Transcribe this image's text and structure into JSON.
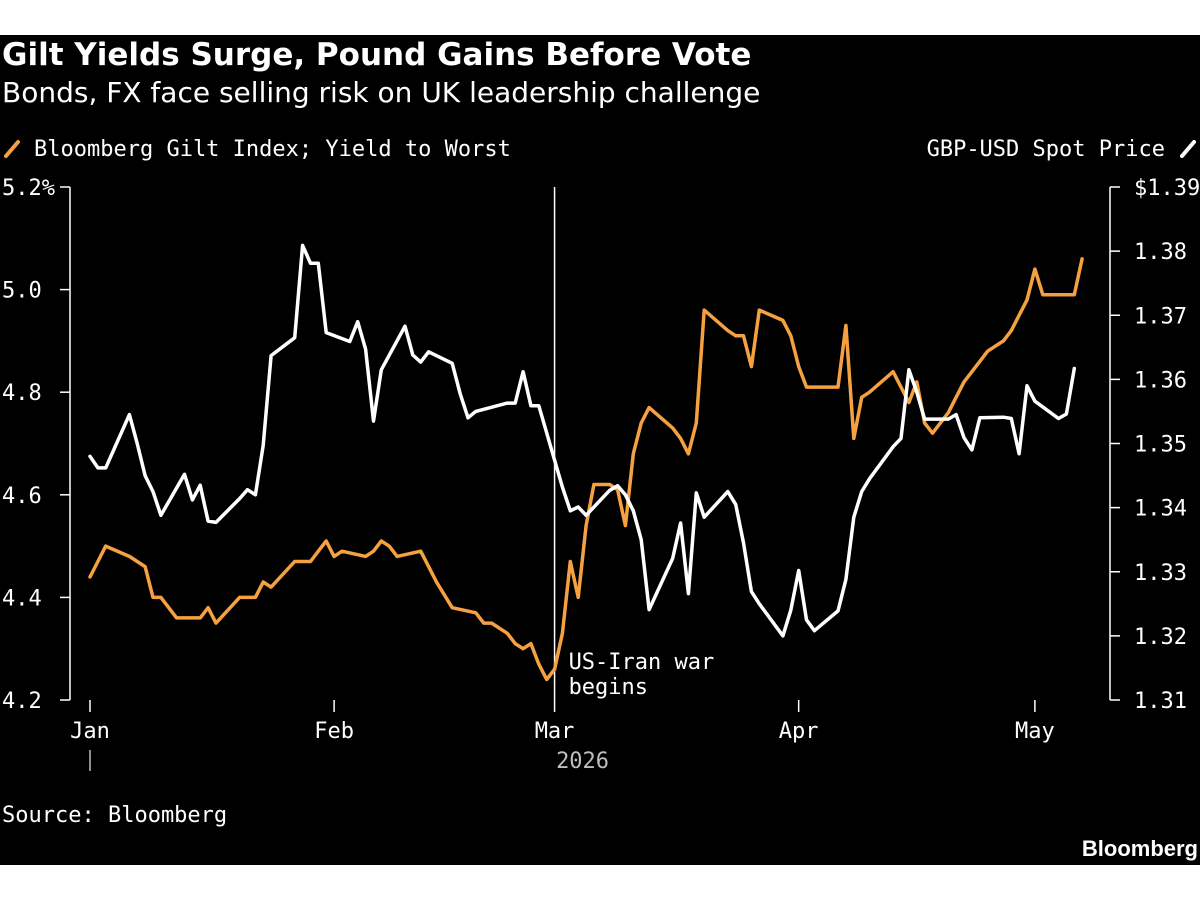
{
  "title": "Gilt Yields Surge, Pound Gains Before Vote",
  "subtitle": "Bonds, FX face selling risk on UK leadership challenge",
  "source": "Source: Bloomberg",
  "brand": "Bloomberg",
  "colors": {
    "background": "#000000",
    "gilt": "#f5a141",
    "gbp": "#ffffff",
    "axis": "#ffffff",
    "year": "#bdbdbd"
  },
  "chart_data": {
    "type": "line",
    "legend": {
      "left": "Bloomberg Gilt Index; Yield to Worst",
      "right": "GBP-USD Spot Price",
      "placement": "top"
    },
    "x_ticks": [
      "Jan",
      "Feb",
      "Mar",
      "Apr",
      "May"
    ],
    "x_tick_positions": [
      "2026-01-01",
      "2026-02-01",
      "2026-03-01",
      "2026-04-01",
      "2026-05-01"
    ],
    "year_label": "2026",
    "x_range": [
      "2026-01-01",
      "2026-05-08"
    ],
    "y_left": {
      "ticks": [
        "5.2%",
        "5.0",
        "4.8",
        "4.6",
        "4.4",
        "4.2"
      ],
      "tick_values": [
        5.2,
        5.0,
        4.8,
        4.6,
        4.4,
        4.2
      ],
      "range": [
        4.2,
        5.2
      ]
    },
    "y_right": {
      "ticks": [
        "$1.39",
        "1.38",
        "1.37",
        "1.36",
        "1.35",
        "1.34",
        "1.33",
        "1.32",
        "1.31"
      ],
      "tick_values": [
        1.39,
        1.38,
        1.37,
        1.36,
        1.35,
        1.34,
        1.33,
        1.32,
        1.31
      ],
      "range": [
        1.31,
        1.39
      ]
    },
    "grid": false,
    "annotation": {
      "date": "2026-03-01",
      "lines": [
        "US-Iran war",
        "begins"
      ]
    },
    "series": [
      {
        "name": "Bloomberg Gilt Index; Yield to Worst",
        "axis": "left",
        "points": [
          [
            "2026-01-01",
            4.44
          ],
          [
            "2026-01-02",
            4.47
          ],
          [
            "2026-01-03",
            4.5
          ],
          [
            "2026-01-06",
            4.48
          ],
          [
            "2026-01-07",
            4.47
          ],
          [
            "2026-01-08",
            4.46
          ],
          [
            "2026-01-09",
            4.4
          ],
          [
            "2026-01-10",
            4.4
          ],
          [
            "2026-01-12",
            4.36
          ],
          [
            "2026-01-15",
            4.36
          ],
          [
            "2026-01-16",
            4.38
          ],
          [
            "2026-01-17",
            4.35
          ],
          [
            "2026-01-20",
            4.4
          ],
          [
            "2026-01-22",
            4.4
          ],
          [
            "2026-01-23",
            4.43
          ],
          [
            "2026-01-24",
            4.42
          ],
          [
            "2026-01-27",
            4.47
          ],
          [
            "2026-01-29",
            4.47
          ],
          [
            "2026-01-30",
            4.49
          ],
          [
            "2026-01-31",
            4.51
          ],
          [
            "2026-02-01",
            4.48
          ],
          [
            "2026-02-02",
            4.49
          ],
          [
            "2026-02-05",
            4.48
          ],
          [
            "2026-02-06",
            4.49
          ],
          [
            "2026-02-07",
            4.51
          ],
          [
            "2026-02-08",
            4.5
          ],
          [
            "2026-02-09",
            4.48
          ],
          [
            "2026-02-12",
            4.49
          ],
          [
            "2026-02-13",
            4.46
          ],
          [
            "2026-02-14",
            4.43
          ],
          [
            "2026-02-16",
            4.38
          ],
          [
            "2026-02-19",
            4.37
          ],
          [
            "2026-02-20",
            4.35
          ],
          [
            "2026-02-21",
            4.35
          ],
          [
            "2026-02-23",
            4.33
          ],
          [
            "2026-02-24",
            4.31
          ],
          [
            "2026-02-25",
            4.3
          ],
          [
            "2026-02-26",
            4.31
          ],
          [
            "2026-02-27",
            4.27
          ],
          [
            "2026-02-28",
            4.24
          ],
          [
            "2026-03-01",
            4.26
          ],
          [
            "2026-03-02",
            4.33
          ],
          [
            "2026-03-03",
            4.47
          ],
          [
            "2026-03-04",
            4.4
          ],
          [
            "2026-03-05",
            4.54
          ],
          [
            "2026-03-06",
            4.62
          ],
          [
            "2026-03-07",
            4.62
          ],
          [
            "2026-03-08",
            4.62
          ],
          [
            "2026-03-09",
            4.61
          ],
          [
            "2026-03-10",
            4.54
          ],
          [
            "2026-03-11",
            4.68
          ],
          [
            "2026-03-12",
            4.74
          ],
          [
            "2026-03-13",
            4.77
          ],
          [
            "2026-03-16",
            4.73
          ],
          [
            "2026-03-17",
            4.71
          ],
          [
            "2026-03-18",
            4.68
          ],
          [
            "2026-03-19",
            4.74
          ],
          [
            "2026-03-20",
            4.96
          ],
          [
            "2026-03-23",
            4.92
          ],
          [
            "2026-03-24",
            4.91
          ],
          [
            "2026-03-25",
            4.91
          ],
          [
            "2026-03-26",
            4.85
          ],
          [
            "2026-03-27",
            4.96
          ],
          [
            "2026-03-30",
            4.94
          ],
          [
            "2026-03-31",
            4.91
          ],
          [
            "2026-04-01",
            4.85
          ],
          [
            "2026-04-02",
            4.81
          ],
          [
            "2026-04-05",
            4.81
          ],
          [
            "2026-04-06",
            4.81
          ],
          [
            "2026-04-07",
            4.93
          ],
          [
            "2026-04-08",
            4.71
          ],
          [
            "2026-04-09",
            4.79
          ],
          [
            "2026-04-10",
            4.8
          ],
          [
            "2026-04-13",
            4.84
          ],
          [
            "2026-04-14",
            4.81
          ],
          [
            "2026-04-15",
            4.78
          ],
          [
            "2026-04-16",
            4.82
          ],
          [
            "2026-04-17",
            4.74
          ],
          [
            "2026-04-18",
            4.72
          ],
          [
            "2026-04-20",
            4.76
          ],
          [
            "2026-04-21",
            4.79
          ],
          [
            "2026-04-22",
            4.82
          ],
          [
            "2026-04-23",
            4.84
          ],
          [
            "2026-04-24",
            4.86
          ],
          [
            "2026-04-25",
            4.88
          ],
          [
            "2026-04-27",
            4.9
          ],
          [
            "2026-04-28",
            4.92
          ],
          [
            "2026-04-29",
            4.95
          ],
          [
            "2026-04-30",
            4.98
          ],
          [
            "2026-05-01",
            5.04
          ],
          [
            "2026-05-02",
            4.99
          ],
          [
            "2026-05-05",
            4.99
          ],
          [
            "2026-05-06",
            4.99
          ],
          [
            "2026-05-07",
            5.06
          ]
        ]
      },
      {
        "name": "GBP-USD Spot Price",
        "axis": "right",
        "points": [
          [
            "2026-01-01",
            1.348
          ],
          [
            "2026-01-02",
            1.3462
          ],
          [
            "2026-01-03",
            1.3462
          ],
          [
            "2026-01-06",
            1.3545
          ],
          [
            "2026-01-07",
            1.35
          ],
          [
            "2026-01-08",
            1.345
          ],
          [
            "2026-01-09",
            1.3425
          ],
          [
            "2026-01-10",
            1.3388
          ],
          [
            "2026-01-13",
            1.3452
          ],
          [
            "2026-01-14",
            1.3412
          ],
          [
            "2026-01-15",
            1.3435
          ],
          [
            "2026-01-16",
            1.3379
          ],
          [
            "2026-01-17",
            1.3377
          ],
          [
            "2026-01-20",
            1.3414
          ],
          [
            "2026-01-21",
            1.3428
          ],
          [
            "2026-01-22",
            1.342
          ],
          [
            "2026-01-23",
            1.3497
          ],
          [
            "2026-01-24",
            1.3637
          ],
          [
            "2026-01-27",
            1.3665
          ],
          [
            "2026-01-28",
            1.3809
          ],
          [
            "2026-01-29",
            1.3781
          ],
          [
            "2026-01-30",
            1.3781
          ],
          [
            "2026-01-31",
            1.3673
          ],
          [
            "2026-02-03",
            1.3659
          ],
          [
            "2026-02-04",
            1.369
          ],
          [
            "2026-02-05",
            1.3647
          ],
          [
            "2026-02-06",
            1.3535
          ],
          [
            "2026-02-07",
            1.3615
          ],
          [
            "2026-02-10",
            1.3683
          ],
          [
            "2026-02-11",
            1.3638
          ],
          [
            "2026-02-12",
            1.3627
          ],
          [
            "2026-02-13",
            1.3643
          ],
          [
            "2026-02-16",
            1.3625
          ],
          [
            "2026-02-17",
            1.3578
          ],
          [
            "2026-02-18",
            1.354
          ],
          [
            "2026-02-19",
            1.355
          ],
          [
            "2026-02-23",
            1.3563
          ],
          [
            "2026-02-24",
            1.3563
          ],
          [
            "2026-02-25",
            1.3612
          ],
          [
            "2026-02-26",
            1.3559
          ],
          [
            "2026-02-27",
            1.3559
          ],
          [
            "2026-03-02",
            1.3432
          ],
          [
            "2026-03-03",
            1.3395
          ],
          [
            "2026-03-04",
            1.3401
          ],
          [
            "2026-03-05",
            1.3388
          ],
          [
            "2026-03-08",
            1.3427
          ],
          [
            "2026-03-09",
            1.3434
          ],
          [
            "2026-03-10",
            1.342
          ],
          [
            "2026-03-11",
            1.3395
          ],
          [
            "2026-03-12",
            1.335
          ],
          [
            "2026-03-13",
            1.3241
          ],
          [
            "2026-03-16",
            1.3321
          ],
          [
            "2026-03-17",
            1.3376
          ],
          [
            "2026-03-18",
            1.3266
          ],
          [
            "2026-03-19",
            1.3423
          ],
          [
            "2026-03-20",
            1.3385
          ],
          [
            "2026-03-23",
            1.3425
          ],
          [
            "2026-03-24",
            1.3405
          ],
          [
            "2026-03-25",
            1.3345
          ],
          [
            "2026-03-26",
            1.3269
          ],
          [
            "2026-03-27",
            1.325
          ],
          [
            "2026-03-30",
            1.32
          ],
          [
            "2026-03-31",
            1.324
          ],
          [
            "2026-04-01",
            1.3302
          ],
          [
            "2026-04-02",
            1.3225
          ],
          [
            "2026-04-03",
            1.3208
          ],
          [
            "2026-04-06",
            1.3239
          ],
          [
            "2026-04-07",
            1.3288
          ],
          [
            "2026-04-08",
            1.3385
          ],
          [
            "2026-04-09",
            1.3425
          ],
          [
            "2026-04-10",
            1.3445
          ],
          [
            "2026-04-13",
            1.3495
          ],
          [
            "2026-04-14",
            1.3508
          ],
          [
            "2026-04-15",
            1.3615
          ],
          [
            "2026-04-16",
            1.358
          ],
          [
            "2026-04-17",
            1.3538
          ],
          [
            "2026-04-20",
            1.3538
          ],
          [
            "2026-04-21",
            1.3545
          ],
          [
            "2026-04-22",
            1.3509
          ],
          [
            "2026-04-23",
            1.349
          ],
          [
            "2026-04-24",
            1.354
          ],
          [
            "2026-04-27",
            1.3541
          ],
          [
            "2026-04-28",
            1.3539
          ],
          [
            "2026-04-29",
            1.3484
          ],
          [
            "2026-04-30",
            1.359
          ],
          [
            "2026-05-01",
            1.3566
          ],
          [
            "2026-05-04",
            1.3539
          ],
          [
            "2026-05-05",
            1.3546
          ],
          [
            "2026-05-06",
            1.3617
          ]
        ]
      }
    ]
  }
}
